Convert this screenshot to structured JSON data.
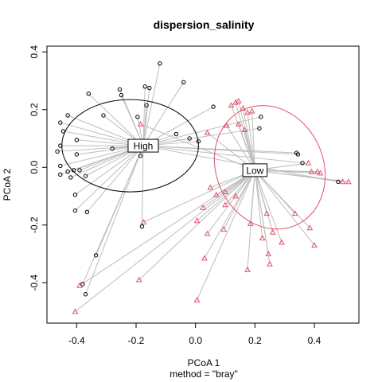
{
  "chart_data": {
    "type": "scatter",
    "title": "dispersion_salinity",
    "xlabel": "PCoA 1",
    "ylabel": "PCoA 2",
    "subtitle": "method = \"bray\"",
    "xlim": [
      -0.5,
      0.55
    ],
    "ylim": [
      -0.54,
      0.42
    ],
    "x_ticks": [
      -0.4,
      -0.2,
      0.0,
      0.2,
      0.4
    ],
    "y_ticks": [
      -0.4,
      -0.2,
      0.0,
      0.2,
      0.4
    ],
    "tick_labels_x": [
      "-0.4",
      "-0.2",
      "0.0",
      "0.2",
      "0.4"
    ],
    "tick_labels_y": [
      "-0.4",
      "-0.2",
      "0.0",
      "0.2",
      "0.4"
    ],
    "series": [
      {
        "name": "High",
        "marker": "circle",
        "color": "#000000",
        "centroid": [
          -0.176,
          0.075
        ],
        "ellipse": {
          "cx": -0.22,
          "cy": 0.075,
          "rx": 0.23,
          "ry": 0.16,
          "angle": 0
        },
        "points": [
          [
            -0.12,
            0.36
          ],
          [
            -0.17,
            0.28
          ],
          [
            -0.155,
            0.275
          ],
          [
            -0.255,
            0.27
          ],
          [
            -0.04,
            0.295
          ],
          [
            -0.36,
            0.255
          ],
          [
            -0.25,
            0.25
          ],
          [
            -0.165,
            0.215
          ],
          [
            -0.195,
            0.175
          ],
          [
            0.06,
            0.21
          ],
          [
            -0.31,
            0.18
          ],
          [
            -0.43,
            0.18
          ],
          [
            -0.455,
            0.155
          ],
          [
            -0.445,
            0.125
          ],
          [
            -0.4,
            0.095
          ],
          [
            -0.455,
            0.075
          ],
          [
            -0.465,
            0.055
          ],
          [
            -0.28,
            0.065
          ],
          [
            -0.185,
            0.04
          ],
          [
            -0.4,
            0.045
          ],
          [
            -0.455,
            0.005
          ],
          [
            -0.41,
            -0.01
          ],
          [
            -0.39,
            -0.01
          ],
          [
            -0.43,
            -0.015
          ],
          [
            -0.455,
            -0.025
          ],
          [
            -0.42,
            -0.035
          ],
          [
            -0.37,
            -0.03
          ],
          [
            -0.405,
            -0.095
          ],
          [
            -0.405,
            -0.15
          ],
          [
            -0.365,
            -0.155
          ],
          [
            -0.18,
            -0.205
          ],
          [
            -0.335,
            -0.305
          ],
          [
            -0.38,
            -0.405
          ],
          [
            -0.37,
            -0.44
          ],
          [
            -0.065,
            0.115
          ],
          [
            -0.02,
            0.1
          ],
          [
            0.01,
            0.09
          ],
          [
            0.22,
            0.175
          ],
          [
            0.215,
            0.135
          ],
          [
            0.34,
            0.05
          ],
          [
            0.345,
            0.045
          ],
          [
            0.36,
            0.015
          ],
          [
            0.48,
            -0.05
          ]
        ]
      },
      {
        "name": "Low",
        "marker": "triangle",
        "color": "#df536b",
        "centroid": [
          0.2,
          -0.01
        ],
        "ellipse": {
          "cx": 0.25,
          "cy": 0.0,
          "rx": 0.18,
          "ry": 0.22,
          "angle": -25
        },
        "points": [
          [
            -0.185,
            0.15
          ],
          [
            0.12,
            0.215
          ],
          [
            0.135,
            0.225
          ],
          [
            0.145,
            0.23
          ],
          [
            0.16,
            0.205
          ],
          [
            0.175,
            0.19
          ],
          [
            0.19,
            0.195
          ],
          [
            0.105,
            0.145
          ],
          [
            0.145,
            0.15
          ],
          [
            0.165,
            0.13
          ],
          [
            0.04,
            0.12
          ],
          [
            0.38,
            0.015
          ],
          [
            0.39,
            -0.015
          ],
          [
            0.41,
            -0.015
          ],
          [
            0.42,
            -0.02
          ],
          [
            0.495,
            -0.05
          ],
          [
            0.515,
            -0.05
          ],
          [
            0.05,
            -0.07
          ],
          [
            0.07,
            -0.095
          ],
          [
            0.1,
            -0.085
          ],
          [
            0.135,
            -0.1
          ],
          [
            0.1,
            -0.13
          ],
          [
            0.025,
            -0.14
          ],
          [
            0.005,
            -0.185
          ],
          [
            0.04,
            -0.23
          ],
          [
            0.095,
            -0.215
          ],
          [
            0.24,
            -0.16
          ],
          [
            0.185,
            -0.195
          ],
          [
            0.225,
            -0.245
          ],
          [
            0.26,
            -0.225
          ],
          [
            0.29,
            -0.26
          ],
          [
            0.385,
            -0.21
          ],
          [
            0.4,
            -0.27
          ],
          [
            0.245,
            -0.3
          ],
          [
            0.25,
            -0.335
          ],
          [
            0.03,
            -0.315
          ],
          [
            0.175,
            -0.355
          ],
          [
            -0.175,
            -0.19
          ],
          [
            -0.19,
            -0.39
          ],
          [
            -0.39,
            -0.41
          ],
          [
            -0.405,
            -0.5
          ],
          [
            0.005,
            -0.46
          ],
          [
            0.335,
            -0.16
          ]
        ]
      }
    ]
  }
}
